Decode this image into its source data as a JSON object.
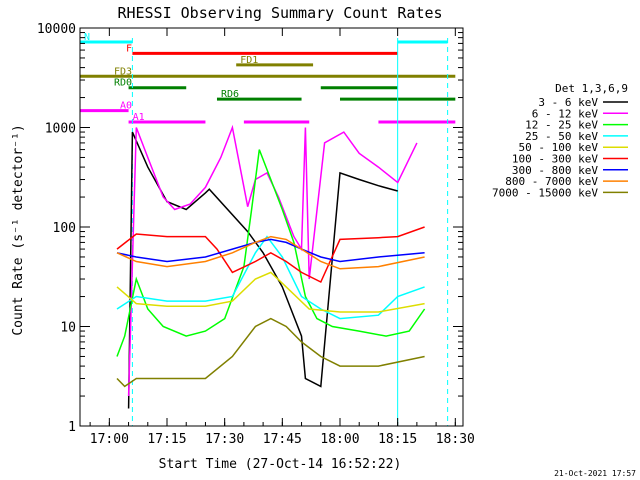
{
  "chart_data": {
    "type": "line",
    "title": "RHESSI Observing Summary Count Rates",
    "xlabel": "Start Time (27-Oct-14 16:52:22)",
    "ylabel": "Count Rate (s⁻¹ detector⁻¹)",
    "footer": "21-Oct-2021 17:57",
    "y_scale": "log",
    "ylim": [
      1,
      10000
    ],
    "xlim": [
      "16:52:22",
      "18:32:00"
    ],
    "x_ticks": [
      "17:00",
      "17:15",
      "17:30",
      "17:45",
      "18:00",
      "18:15",
      "18:30"
    ],
    "y_ticks": [
      "1",
      "10",
      "100",
      "1000",
      "10000"
    ],
    "legend_title": "Det 1,3,6,9",
    "legend_position": "right",
    "series": [
      {
        "name": "3 - 6 keV",
        "color": "#000000",
        "points": [
          [
            "17:05",
            1.5
          ],
          [
            "17:06",
            900
          ],
          [
            "17:10",
            400
          ],
          [
            "17:15",
            180
          ],
          [
            "17:20",
            150
          ],
          [
            "17:25",
            220
          ],
          [
            "17:26",
            240
          ],
          [
            "17:36",
            90
          ],
          [
            "17:40",
            55
          ],
          [
            "17:45",
            25
          ],
          [
            "17:50",
            8
          ],
          [
            "17:51",
            3
          ],
          [
            "17:55",
            2.5
          ],
          [
            "18:00",
            350
          ],
          [
            "18:05",
            300
          ],
          [
            "18:10",
            260
          ],
          [
            "18:15",
            230
          ]
        ]
      },
      {
        "name": "6 - 12 keV",
        "color": "#ff00ff",
        "points": [
          [
            "17:05",
            2
          ],
          [
            "17:07",
            1000
          ],
          [
            "17:10",
            500
          ],
          [
            "17:14",
            200
          ],
          [
            "17:17",
            150
          ],
          [
            "17:21",
            170
          ],
          [
            "17:25",
            250
          ],
          [
            "17:29",
            500
          ],
          [
            "17:32",
            1000
          ],
          [
            "17:36",
            160
          ],
          [
            "17:38",
            300
          ],
          [
            "17:41",
            350
          ],
          [
            "17:44",
            200
          ],
          [
            "17:48",
            80
          ],
          [
            "17:50",
            60
          ],
          [
            "17:51",
            1000
          ],
          [
            "17:52",
            30
          ],
          [
            "17:56",
            700
          ],
          [
            "18:01",
            900
          ],
          [
            "18:05",
            550
          ],
          [
            "18:10",
            400
          ],
          [
            "18:15",
            280
          ],
          [
            "18:20",
            700
          ]
        ]
      },
      {
        "name": "12 - 25 keV",
        "color": "#00ff00",
        "points": [
          [
            "17:02",
            5
          ],
          [
            "17:04",
            8
          ],
          [
            "17:07",
            30
          ],
          [
            "17:10",
            15
          ],
          [
            "17:14",
            10
          ],
          [
            "17:20",
            8
          ],
          [
            "17:25",
            9
          ],
          [
            "17:30",
            12
          ],
          [
            "17:35",
            40
          ],
          [
            "17:37",
            150
          ],
          [
            "17:39",
            600
          ],
          [
            "17:42",
            300
          ],
          [
            "17:45",
            150
          ],
          [
            "17:48",
            70
          ],
          [
            "17:51",
            20
          ],
          [
            "17:54",
            12
          ],
          [
            "17:58",
            10
          ],
          [
            "18:05",
            9
          ],
          [
            "18:12",
            8
          ],
          [
            "18:18",
            9
          ],
          [
            "18:22",
            15
          ]
        ]
      },
      {
        "name": "25 - 50 keV",
        "color": "#00ffff",
        "points": [
          [
            "17:02",
            15
          ],
          [
            "17:07",
            20
          ],
          [
            "17:15",
            18
          ],
          [
            "17:25",
            18
          ],
          [
            "17:32",
            20
          ],
          [
            "17:38",
            55
          ],
          [
            "17:41",
            80
          ],
          [
            "17:45",
            50
          ],
          [
            "17:50",
            20
          ],
          [
            "17:55",
            15
          ],
          [
            "18:00",
            12
          ],
          [
            "18:10",
            13
          ],
          [
            "18:15",
            20
          ],
          [
            "18:22",
            25
          ]
        ]
      },
      {
        "name": "50 - 100 keV",
        "color": "#dddd00",
        "points": [
          [
            "17:02",
            25
          ],
          [
            "17:07",
            17
          ],
          [
            "17:15",
            16
          ],
          [
            "17:25",
            16
          ],
          [
            "17:32",
            18
          ],
          [
            "17:38",
            30
          ],
          [
            "17:42",
            35
          ],
          [
            "17:46",
            25
          ],
          [
            "17:52",
            15
          ],
          [
            "18:00",
            14
          ],
          [
            "18:10",
            14
          ],
          [
            "18:22",
            17
          ]
        ]
      },
      {
        "name": "100 - 300 keV",
        "color": "#ff0000",
        "points": [
          [
            "17:02",
            60
          ],
          [
            "17:07",
            85
          ],
          [
            "17:15",
            80
          ],
          [
            "17:25",
            80
          ],
          [
            "17:28",
            60
          ],
          [
            "17:32",
            35
          ],
          [
            "17:38",
            45
          ],
          [
            "17:42",
            55
          ],
          [
            "17:46",
            45
          ],
          [
            "17:50",
            35
          ],
          [
            "17:55",
            28
          ],
          [
            "18:00",
            75
          ],
          [
            "18:10",
            78
          ],
          [
            "18:15",
            80
          ],
          [
            "18:22",
            100
          ]
        ]
      },
      {
        "name": "300 - 800 keV",
        "color": "#0000ff",
        "points": [
          [
            "17:02",
            55
          ],
          [
            "17:07",
            50
          ],
          [
            "17:15",
            45
          ],
          [
            "17:25",
            50
          ],
          [
            "17:32",
            60
          ],
          [
            "17:38",
            70
          ],
          [
            "17:42",
            75
          ],
          [
            "17:46",
            70
          ],
          [
            "17:50",
            60
          ],
          [
            "17:55",
            50
          ],
          [
            "18:00",
            45
          ],
          [
            "18:10",
            50
          ],
          [
            "18:22",
            55
          ]
        ]
      },
      {
        "name": "800 - 7000 keV",
        "color": "#ff8000",
        "points": [
          [
            "17:02",
            55
          ],
          [
            "17:07",
            45
          ],
          [
            "17:15",
            40
          ],
          [
            "17:25",
            45
          ],
          [
            "17:32",
            55
          ],
          [
            "17:38",
            70
          ],
          [
            "17:42",
            80
          ],
          [
            "17:46",
            75
          ],
          [
            "17:50",
            60
          ],
          [
            "17:55",
            45
          ],
          [
            "18:00",
            38
          ],
          [
            "18:10",
            40
          ],
          [
            "18:22",
            50
          ]
        ]
      },
      {
        "name": "7000 - 15000 keV",
        "color": "#808000",
        "points": [
          [
            "17:02",
            3
          ],
          [
            "17:04",
            2.5
          ],
          [
            "17:07",
            3
          ],
          [
            "17:15",
            3
          ],
          [
            "17:25",
            3
          ],
          [
            "17:32",
            5
          ],
          [
            "17:38",
            10
          ],
          [
            "17:42",
            12
          ],
          [
            "17:46",
            10
          ],
          [
            "17:50",
            7
          ],
          [
            "17:55",
            5
          ],
          [
            "18:00",
            4
          ],
          [
            "18:10",
            4
          ],
          [
            "18:22",
            5
          ]
        ]
      }
    ],
    "state_bars": [
      {
        "label": "N",
        "color": "#00ffff",
        "label_side": "right",
        "segments": [
          [
            "16:52:22",
            "17:06"
          ],
          [
            "18:15",
            "18:28"
          ]
        ]
      },
      {
        "label": "F",
        "color": "#ff0000",
        "label_side": "left",
        "segments": [
          [
            "17:06",
            "18:15"
          ]
        ]
      },
      {
        "label": "FD1",
        "color": "#808000",
        "label_side": "right",
        "segments": [
          [
            "17:33",
            "17:53"
          ]
        ]
      },
      {
        "label": "FD3",
        "color": "#808000",
        "label_side": "left",
        "segments": [
          [
            "16:52:22",
            "18:30"
          ]
        ]
      },
      {
        "label": "RD0",
        "color": "#008000",
        "label_side": "left",
        "segments": [
          [
            "17:05",
            "17:20"
          ],
          [
            "17:55",
            "18:15"
          ]
        ]
      },
      {
        "label": "RD6",
        "color": "#008000",
        "label_side": "right",
        "segments": [
          [
            "17:28",
            "17:50"
          ],
          [
            "18:00",
            "18:30"
          ]
        ]
      },
      {
        "label": "A0",
        "color": "#ff00ff",
        "label_side": "left",
        "segments": [
          [
            "16:52:22",
            "17:05"
          ]
        ]
      },
      {
        "label": "A1",
        "color": "#ff00ff",
        "label_side": "right",
        "segments": [
          [
            "17:05",
            "17:25"
          ],
          [
            "17:35",
            "17:52"
          ],
          [
            "18:10",
            "18:30"
          ]
        ]
      }
    ]
  }
}
